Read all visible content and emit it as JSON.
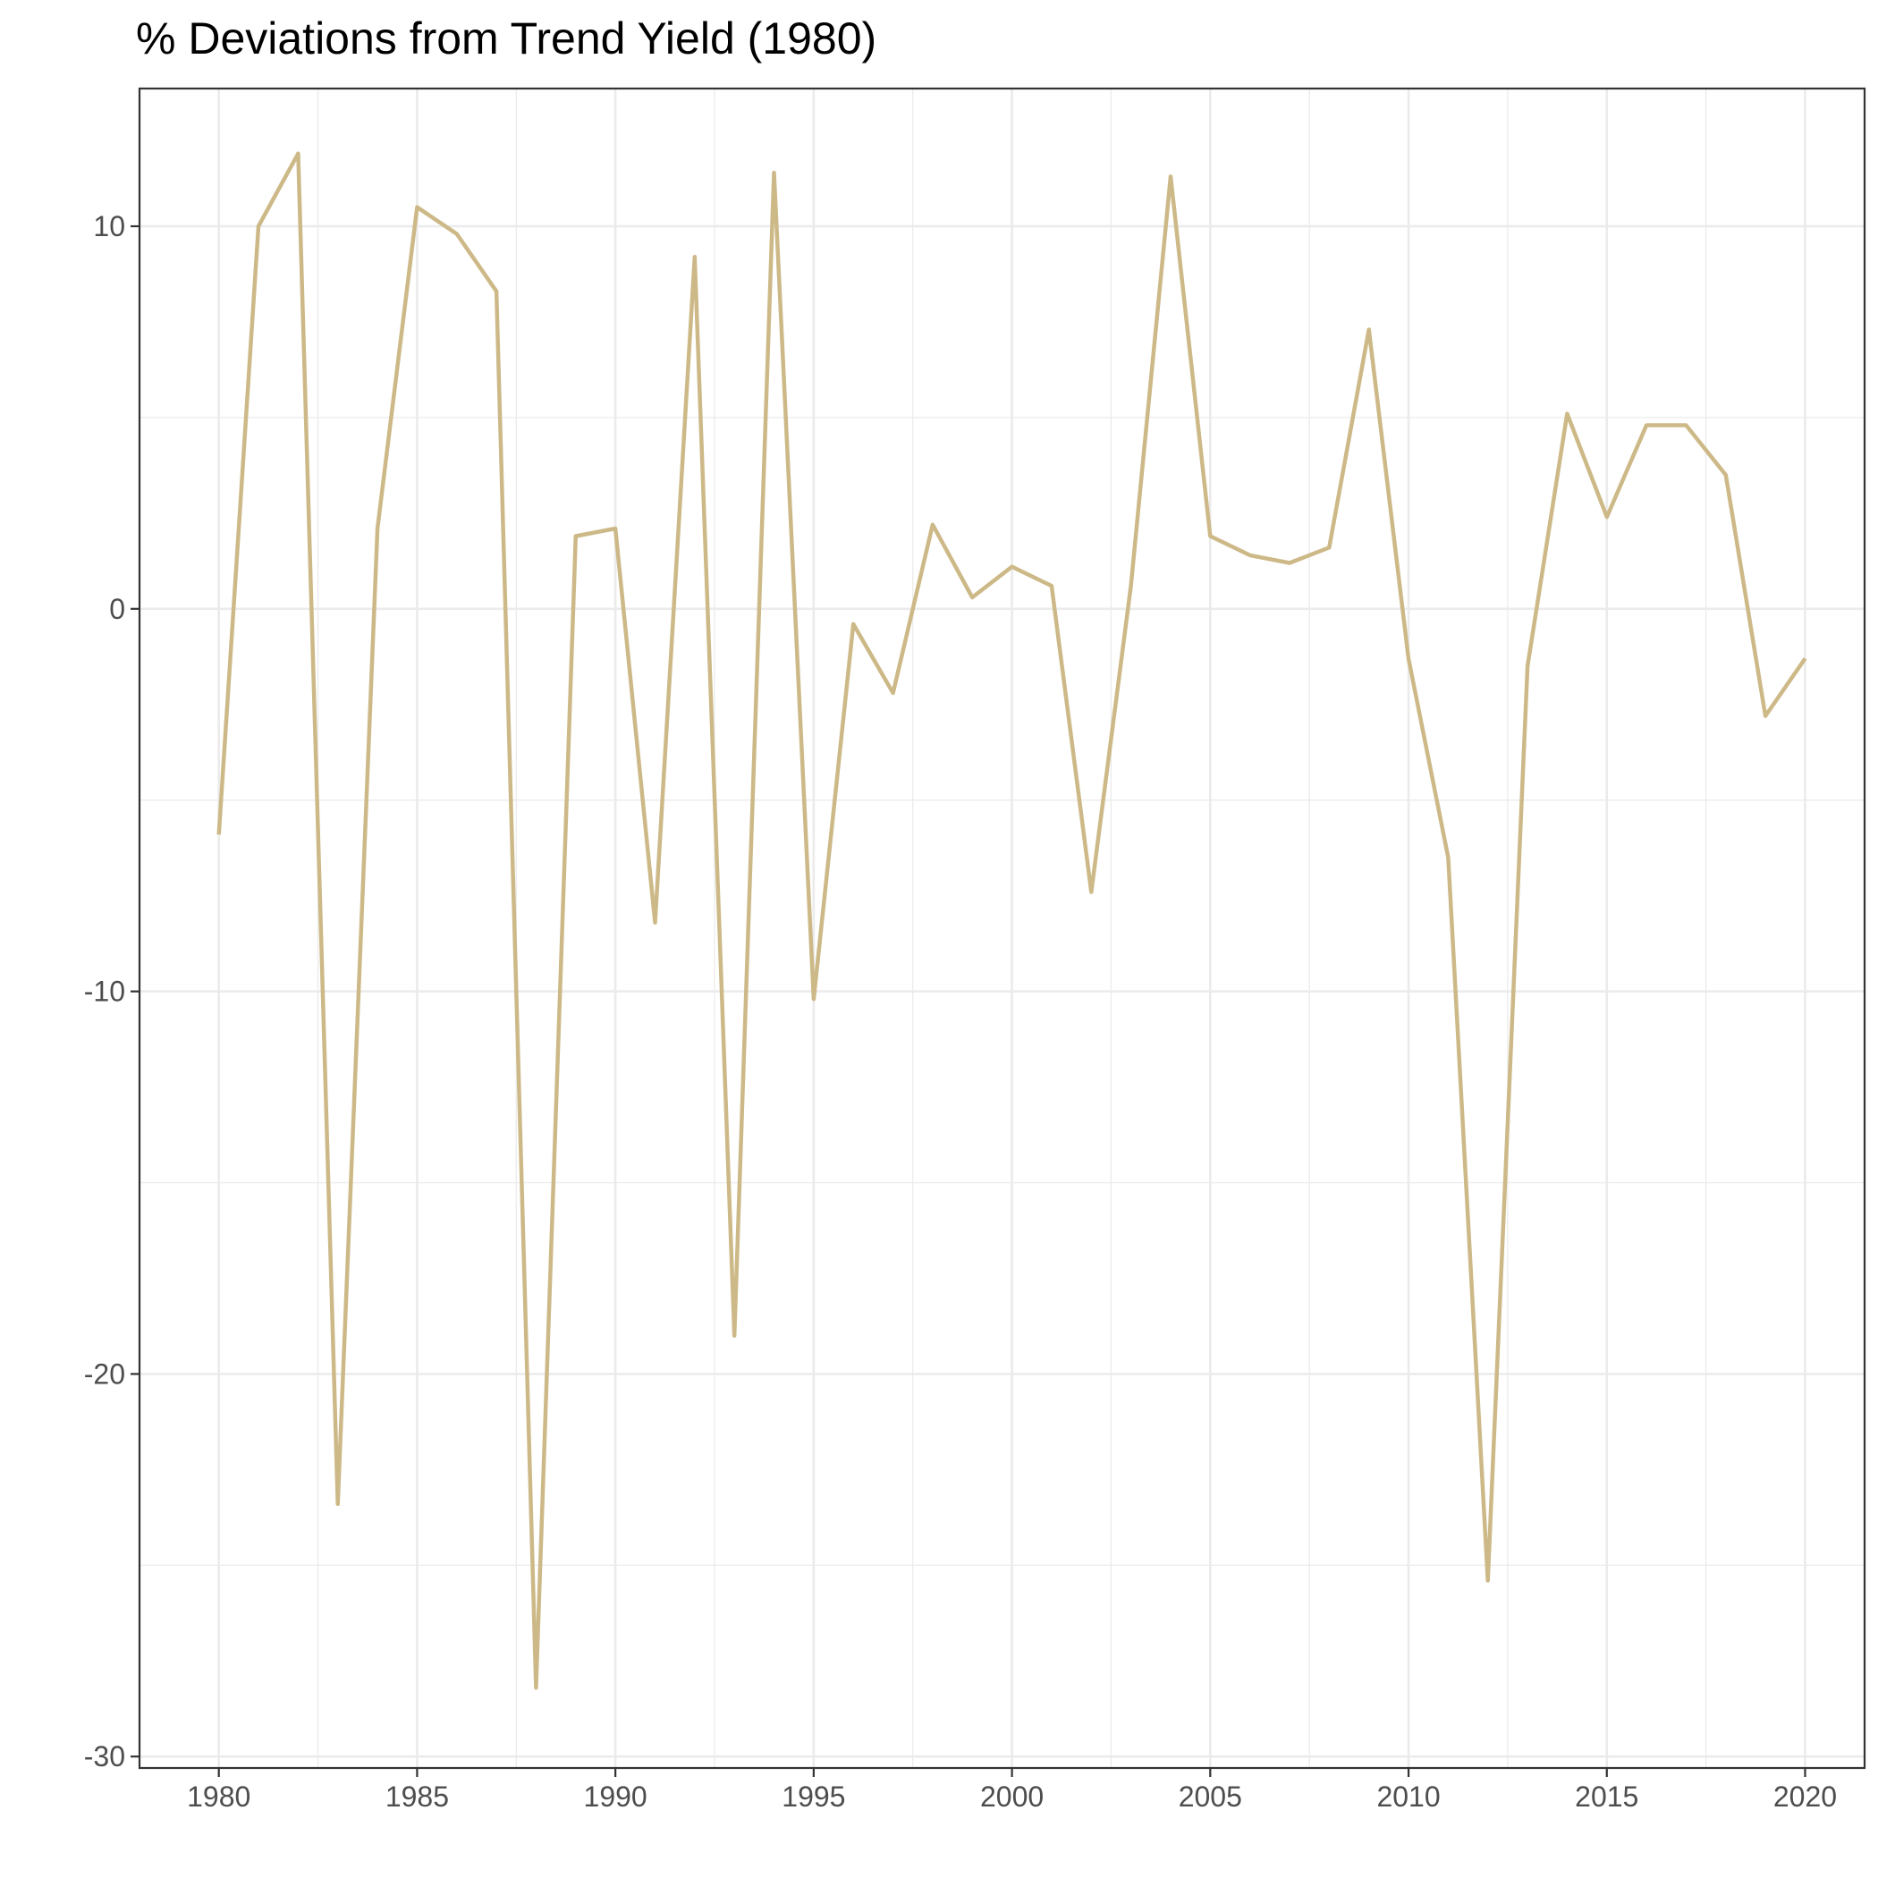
{
  "chart_data": {
    "type": "line",
    "title": "% Deviations from Trend Yield (1980)",
    "xlabel": "",
    "ylabel": "",
    "xlim": [
      1978,
      2021.5
    ],
    "ylim": [
      -30.3,
      13.6
    ],
    "x_ticks": [
      1980,
      1985,
      1990,
      1995,
      2000,
      2005,
      2010,
      2015,
      2020
    ],
    "y_ticks": [
      -30,
      -20,
      -10,
      0,
      10
    ],
    "grid": true,
    "legend": "none",
    "line_color": "#cdb987",
    "series": [
      {
        "x": [
          1980,
          1981,
          1982,
          1983,
          1984,
          1985,
          1986,
          1987,
          1988,
          1989,
          1990,
          1991,
          1992,
          1993,
          1994,
          1995,
          1996,
          1997,
          1998,
          1999,
          2000,
          2001,
          2002,
          2003,
          2004,
          2005,
          2006,
          2007,
          2008,
          2009,
          2010,
          2011,
          2012,
          2013,
          2014,
          2015,
          2016,
          2017,
          2018,
          2019,
          2020
        ],
        "values": [
          -5.9,
          10.0,
          11.9,
          -23.4,
          2.1,
          10.5,
          9.8,
          8.3,
          -28.2,
          1.9,
          2.1,
          -8.2,
          9.2,
          -19.0,
          11.4,
          -10.2,
          -0.4,
          -2.2,
          2.2,
          0.3,
          1.1,
          0.6,
          -7.4,
          0.6,
          11.3,
          1.9,
          1.4,
          1.2,
          1.6,
          7.3,
          -1.3,
          -6.5,
          -25.4,
          -1.5,
          5.1,
          2.4,
          4.8,
          4.8,
          3.5,
          -2.8,
          -1.3
        ]
      }
    ]
  }
}
